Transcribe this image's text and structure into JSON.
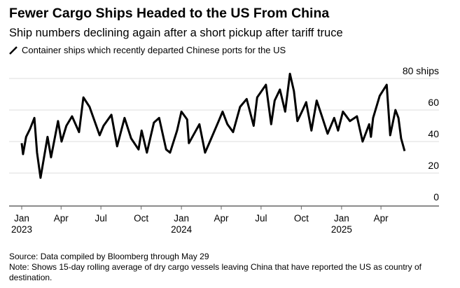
{
  "title": "Fewer Cargo Ships Headed to the US From China",
  "subtitle": "Ship numbers declining again after a short pickup after tariff truce",
  "footer": {
    "source": "Source: Data compiled by Bloomberg through May 29",
    "note": "Note: Shows 15-day rolling average of dry cargo vessels leaving China that have reported the US as country of destination."
  },
  "chart_data": {
    "type": "line",
    "title": "Fewer Cargo Ships Headed to the US From China",
    "legend": [
      "Container ships which recently departed Chinese ports for the US"
    ],
    "legend_placement": "top-left",
    "ylabel": "ships",
    "ylim": [
      0,
      80
    ],
    "yticks": [
      {
        "value": 80,
        "label": "80 ships"
      },
      {
        "value": 60,
        "label": "60"
      },
      {
        "value": 40,
        "label": "40"
      },
      {
        "value": 20,
        "label": "20"
      },
      {
        "value": 0,
        "label": "0"
      }
    ],
    "x_unit": "days since 2023-01-01",
    "xlim": [
      -30,
      915
    ],
    "xticks": [
      {
        "day": 0,
        "label": "Jan",
        "year": "2023"
      },
      {
        "day": 90,
        "label": "Apr",
        "year": ""
      },
      {
        "day": 181,
        "label": "Jul",
        "year": ""
      },
      {
        "day": 273,
        "label": "Oct",
        "year": ""
      },
      {
        "day": 365,
        "label": "Jan",
        "year": "2024"
      },
      {
        "day": 456,
        "label": "Apr",
        "year": ""
      },
      {
        "day": 547,
        "label": "Jul",
        "year": ""
      },
      {
        "day": 639,
        "label": "Oct",
        "year": ""
      },
      {
        "day": 731,
        "label": "Jan",
        "year": "2025"
      },
      {
        "day": 821,
        "label": "Apr",
        "year": ""
      }
    ],
    "grid": true,
    "color": "#000000",
    "series": [
      {
        "name": "Container ships which recently departed Chinese ports for the US",
        "points": [
          [
            0,
            39
          ],
          [
            3,
            32
          ],
          [
            10,
            43
          ],
          [
            19,
            48
          ],
          [
            29,
            55
          ],
          [
            35,
            33
          ],
          [
            43,
            17
          ],
          [
            59,
            43
          ],
          [
            67,
            30
          ],
          [
            83,
            53
          ],
          [
            91,
            40
          ],
          [
            102,
            50
          ],
          [
            115,
            56
          ],
          [
            131,
            46
          ],
          [
            141,
            68
          ],
          [
            155,
            62
          ],
          [
            178,
            44
          ],
          [
            187,
            50
          ],
          [
            205,
            57
          ],
          [
            218,
            37
          ],
          [
            235,
            55
          ],
          [
            250,
            42
          ],
          [
            267,
            35
          ],
          [
            274,
            47
          ],
          [
            286,
            33
          ],
          [
            302,
            52
          ],
          [
            314,
            55
          ],
          [
            330,
            35
          ],
          [
            339,
            33
          ],
          [
            355,
            47
          ],
          [
            365,
            59
          ],
          [
            378,
            54
          ],
          [
            382,
            39
          ],
          [
            406,
            51
          ],
          [
            419,
            33
          ],
          [
            430,
            40
          ],
          [
            450,
            53
          ],
          [
            459,
            59
          ],
          [
            470,
            51
          ],
          [
            483,
            46
          ],
          [
            499,
            62
          ],
          [
            514,
            67
          ],
          [
            530,
            50
          ],
          [
            538,
            68
          ],
          [
            558,
            76
          ],
          [
            570,
            51
          ],
          [
            578,
            66
          ],
          [
            590,
            73
          ],
          [
            602,
            59
          ],
          [
            613,
            83
          ],
          [
            622,
            72
          ],
          [
            630,
            53
          ],
          [
            642,
            60
          ],
          [
            650,
            65
          ],
          [
            662,
            47
          ],
          [
            674,
            66
          ],
          [
            686,
            56
          ],
          [
            699,
            45
          ],
          [
            714,
            55
          ],
          [
            723,
            47
          ],
          [
            734,
            59
          ],
          [
            750,
            53
          ],
          [
            766,
            56
          ],
          [
            779,
            40
          ],
          [
            794,
            51
          ],
          [
            798,
            43
          ],
          [
            803,
            55
          ],
          [
            818,
            69
          ],
          [
            834,
            76
          ],
          [
            842,
            44
          ],
          [
            854,
            60
          ],
          [
            861,
            55
          ],
          [
            867,
            42
          ],
          [
            875,
            34
          ]
        ]
      }
    ]
  }
}
